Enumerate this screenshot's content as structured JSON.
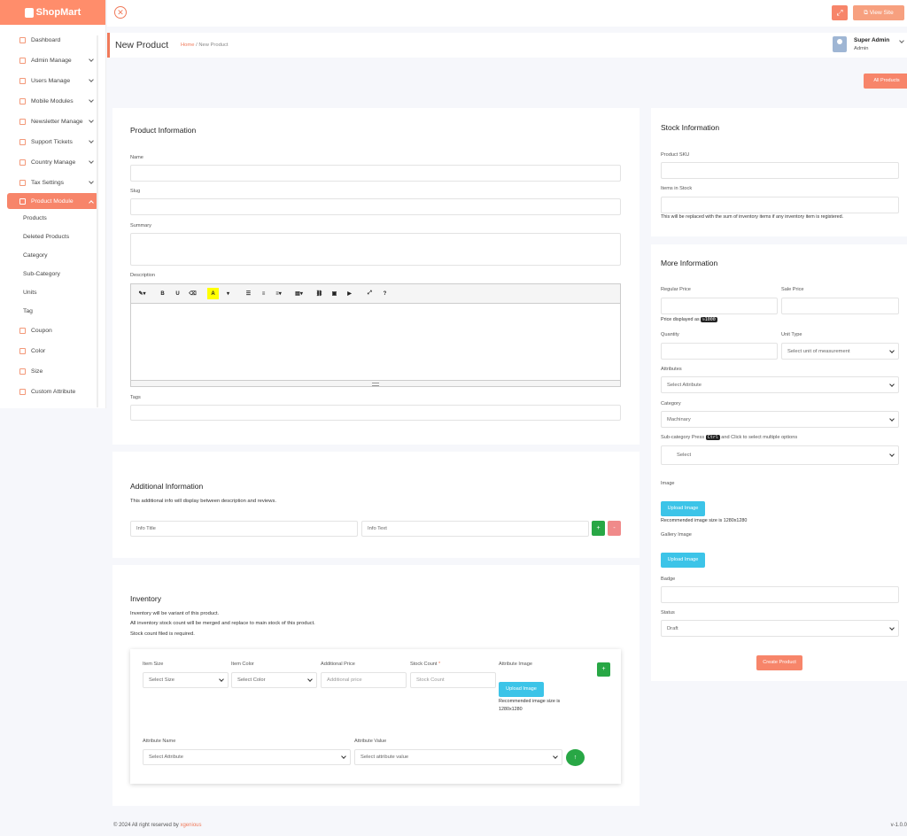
{
  "app": {
    "logo_prefix": "Shop",
    "logo_suffix": "Mart"
  },
  "sidebar": {
    "items": [
      {
        "label": "Dashboard",
        "icon": "dashboard-icon",
        "chevron": false
      },
      {
        "label": "Admin Manage",
        "icon": "user-icon",
        "chevron": true
      },
      {
        "label": "Users Manage",
        "icon": "user-icon",
        "chevron": true
      },
      {
        "label": "Mobile Modules",
        "icon": "mobile-icon",
        "chevron": true
      },
      {
        "label": "Newsletter Manage",
        "icon": "mail-icon",
        "chevron": true
      },
      {
        "label": "Support Tickets",
        "icon": "support-icon",
        "chevron": true
      },
      {
        "label": "Country Manage",
        "icon": "globe-icon",
        "chevron": true
      },
      {
        "label": "Tax Settings",
        "icon": "gear-icon",
        "chevron": true
      },
      {
        "label": "Product Module",
        "icon": "box-icon",
        "chevron": true,
        "active": true
      }
    ],
    "subitems": [
      "Products",
      "Deleted Products",
      "Category",
      "Sub-Category",
      "Units",
      "Tag"
    ],
    "more_items": [
      {
        "label": "Coupon",
        "icon": "coupon-icon"
      },
      {
        "label": "Color",
        "icon": "palette-icon"
      },
      {
        "label": "Size",
        "icon": "ruler-icon"
      },
      {
        "label": "Custom Attribute",
        "icon": "list-icon"
      }
    ]
  },
  "topbar": {
    "view_site": "View Site"
  },
  "header": {
    "title": "New Product",
    "breadcrumb_home": "Home",
    "breadcrumb_sep": "/",
    "breadcrumb_current": "New Product",
    "user_name": "Super Admin",
    "user_role": "Admin"
  },
  "actions": {
    "all_products": "All Products",
    "create_product": "Create Product"
  },
  "product_info": {
    "title": "Product Information",
    "name_label": "Name",
    "slug_label": "Slug",
    "summary_label": "Summary",
    "description_label": "Description",
    "tags_label": "Tags",
    "toolbar": [
      "B",
      "U",
      "A",
      "?"
    ]
  },
  "additional_info": {
    "title": "Additional Information",
    "note": "This additional info will display between description and reviews.",
    "info_title_placeholder": "Info Title",
    "info_text_placeholder": "Info Text",
    "add": "+",
    "remove": "-"
  },
  "inventory": {
    "title": "Inventory",
    "notes": [
      "Inventory will be variant of this product.",
      "All inventory stock count will be merged and replace to main stock of this product.",
      "Stock count filed is required."
    ],
    "item_size_label": "Item Size",
    "item_size_value": "Select Size",
    "item_color_label": "Item Color",
    "item_color_value": "Select Color",
    "additional_price_label": "Additional Price",
    "additional_price_placeholder": "Additional price",
    "stock_count_label": "Stock Count",
    "required_mark": "*",
    "stock_count_placeholder": "Stock Count",
    "attribute_image_label": "Attribute Image",
    "upload_image": "Upload Image",
    "recommended": "Recommended image size is 1280x1280",
    "attribute_name_label": "Attribute Name",
    "attribute_name_value": "Select Attribute",
    "attribute_value_label": "Attribute Value",
    "attribute_value_value": "Select attribute value",
    "add": "+",
    "up": "↑"
  },
  "stock_info": {
    "title": "Stock Information",
    "sku_label": "Product SKU",
    "items_label": "Items in Stock",
    "note": "This will be replaced with the sum of inventory items if any inventory item is registered."
  },
  "more_info": {
    "title": "More Information",
    "regular_price_label": "Regular Price",
    "sale_price_label": "Sale Price",
    "price_displayed_prefix": "Price displayed as",
    "price_displayed_value": "৳1000",
    "quantity_label": "Quantity",
    "unit_type_label": "Unit Type",
    "unit_type_value": "Select unit of measurement",
    "attributes_label": "Attributes",
    "attributes_value": "Select Attribute",
    "category_label": "Category",
    "category_value": "Machinary",
    "subcategory_prefix": "Sub-category Press",
    "subcategory_key": "Ctrl",
    "subcategory_suffix": "and Click to select multiple options",
    "subcategory_value": "Select",
    "image_label": "Image",
    "upload_image": "Upload Image",
    "recommended": "Recommended image size is 1280x1280",
    "gallery_label": "Gallery Image",
    "badge_label": "Badge",
    "status_label": "Status",
    "status_value": "Draft"
  },
  "footer": {
    "copyright": "© 2024 All right reserved by",
    "company": "xgenious",
    "version": "v-1.0.0"
  },
  "colors": {
    "accent": "#f7856a",
    "green": "#28a745",
    "blue": "#3cc4e8"
  }
}
